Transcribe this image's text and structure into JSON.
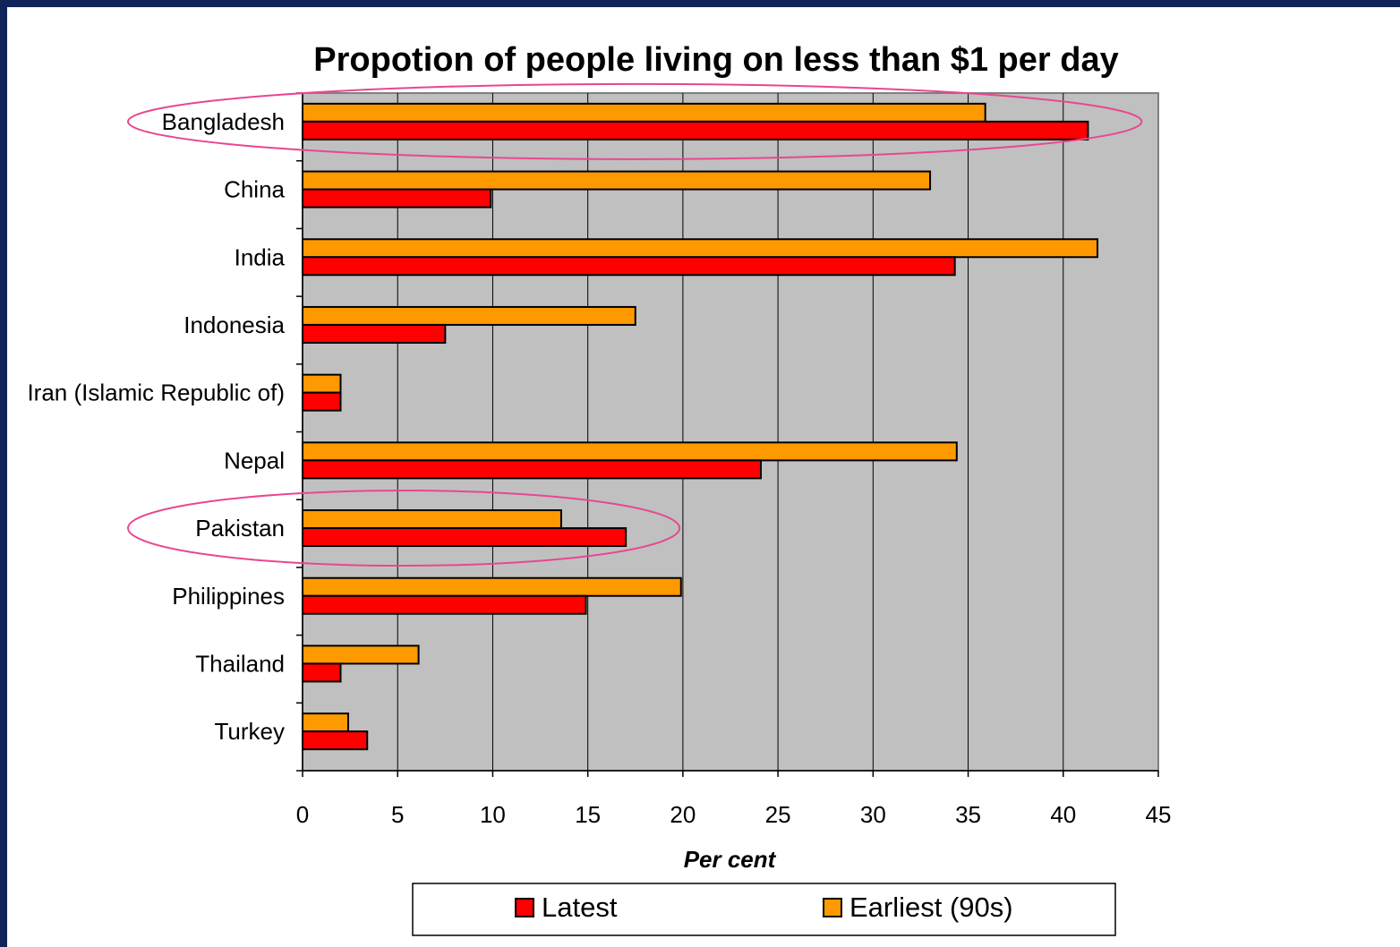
{
  "colors": {
    "frame": "#10245a",
    "plot_background": "#c0c0c0",
    "latest": "#ff0000",
    "earliest": "#ff9900",
    "highlight_ellipse": "#e8478f"
  },
  "chart_data": {
    "type": "bar",
    "orientation": "horizontal",
    "title": "Propotion of people living on less than $1 per day",
    "xlabel": "Per cent",
    "ylabel": "",
    "xlim": [
      0,
      45
    ],
    "xticks": [
      "0",
      "5",
      "10",
      "15",
      "20",
      "25",
      "30",
      "35",
      "40",
      "45"
    ],
    "grid": true,
    "legend_position": "bottom",
    "categories": [
      "Bangladesh",
      "China",
      "India",
      "Indonesia",
      "Iran (Islamic Republic of)",
      "Nepal",
      "Pakistan",
      "Philippines",
      "Thailand",
      "Turkey"
    ],
    "series": [
      {
        "name": "Earliest (90s)",
        "color": "#ff9900",
        "values": [
          35.9,
          33.0,
          41.8,
          17.5,
          2.0,
          34.4,
          13.6,
          19.9,
          6.1,
          2.4
        ]
      },
      {
        "name": "Latest",
        "color": "#ff0000",
        "values": [
          41.3,
          9.9,
          34.3,
          7.5,
          2.0,
          24.1,
          17.0,
          14.9,
          2.0,
          3.4
        ]
      }
    ],
    "legend": [
      "Latest",
      "Earliest (90s)"
    ],
    "highlighted_categories": [
      "Bangladesh",
      "Pakistan"
    ]
  }
}
